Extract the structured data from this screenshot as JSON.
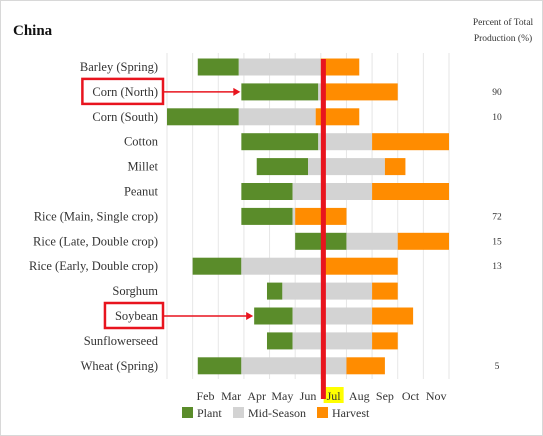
{
  "title": "China",
  "percent_header_line1": "Percent of Total",
  "percent_header_line2": "Production (%)",
  "legend": [
    {
      "label": "Plant",
      "color": "#5a8c2a"
    },
    {
      "label": "Mid-Season",
      "color": "#d3d3d3"
    },
    {
      "label": "Harvest",
      "color": "#ff8c00"
    }
  ],
  "colors": {
    "plant": "#5a8c2a",
    "mid": "#d3d3d3",
    "harvest": "#ff8c00",
    "marker": "#e8141e",
    "highlight": "#ffff00",
    "gridline": "#e6e6e6"
  },
  "current_month_marker": {
    "month": "Jul",
    "value": 7.1
  },
  "highlighted_crops": [
    "Corn (North)",
    "Soybean"
  ],
  "chart_data": {
    "type": "bar",
    "subtype": "gantt-crop-calendar",
    "x_unit": "month",
    "xlim": [
      1,
      11
    ],
    "tick_labels": [
      "Feb",
      "Mar",
      "Apr",
      "May",
      "Jun",
      "Jul",
      "Aug",
      "Sep",
      "Oct",
      "Nov"
    ],
    "tick_values": [
      2,
      3,
      4,
      5,
      6,
      7,
      8,
      9,
      10,
      11
    ],
    "series": [
      {
        "name": "Plant"
      },
      {
        "name": "Mid-Season"
      },
      {
        "name": "Harvest"
      }
    ],
    "crops": [
      {
        "name": "Barley (Spring)",
        "plant": [
          2.2,
          3.8
        ],
        "mid": [
          3.8,
          7.0
        ],
        "harvest": [
          7.0,
          8.5
        ],
        "percent": ""
      },
      {
        "name": "Corn (North)",
        "plant": [
          3.9,
          6.9
        ],
        "mid": [
          6.9,
          7.0
        ],
        "harvest": [
          7.0,
          10.0
        ],
        "percent": "90"
      },
      {
        "name": "Corn (South)",
        "plant": [
          1.0,
          3.8
        ],
        "mid": [
          3.8,
          6.8
        ],
        "harvest": [
          6.8,
          8.5
        ],
        "percent": "10"
      },
      {
        "name": "Cotton",
        "plant": [
          3.9,
          6.9
        ],
        "mid": [
          6.9,
          9.0
        ],
        "harvest": [
          9.0,
          12.0
        ],
        "percent": ""
      },
      {
        "name": "Millet",
        "plant": [
          4.5,
          6.5
        ],
        "mid": [
          6.5,
          9.5
        ],
        "harvest": [
          9.5,
          10.3
        ],
        "percent": ""
      },
      {
        "name": "Peanut",
        "plant": [
          3.9,
          5.9
        ],
        "mid": [
          5.9,
          9.0
        ],
        "harvest": [
          9.0,
          12.0
        ],
        "percent": ""
      },
      {
        "name": "Rice (Main, Single crop)",
        "plant": [
          3.9,
          5.9
        ],
        "mid": [
          5.9,
          6.0
        ],
        "harvest": [
          6.0,
          8.0
        ],
        "percent": "72"
      },
      {
        "name": "Rice (Late, Double crop)",
        "plant": [
          6.0,
          8.0
        ],
        "mid": [
          8.0,
          10.0
        ],
        "harvest": [
          10.0,
          12.0
        ],
        "percent": "15"
      },
      {
        "name": "Rice (Early, Double crop)",
        "plant": [
          2.0,
          3.9
        ],
        "mid": [
          3.9,
          7.1
        ],
        "harvest": [
          7.1,
          10.0
        ],
        "percent": "13"
      },
      {
        "name": "Sorghum",
        "plant": [
          4.9,
          5.5
        ],
        "mid": [
          5.5,
          9.0
        ],
        "harvest": [
          9.0,
          10.0
        ],
        "percent": ""
      },
      {
        "name": "Soybean",
        "plant": [
          4.4,
          5.9
        ],
        "mid": [
          5.9,
          9.0
        ],
        "harvest": [
          9.0,
          10.6
        ],
        "percent": ""
      },
      {
        "name": "Sunflowerseed",
        "plant": [
          4.9,
          5.9
        ],
        "mid": [
          5.9,
          9.0
        ],
        "harvest": [
          9.0,
          10.0
        ],
        "percent": ""
      },
      {
        "name": "Wheat (Spring)",
        "plant": [
          2.2,
          3.9
        ],
        "mid": [
          3.9,
          8.0
        ],
        "harvest": [
          8.0,
          9.5
        ],
        "percent": "5"
      }
    ]
  }
}
